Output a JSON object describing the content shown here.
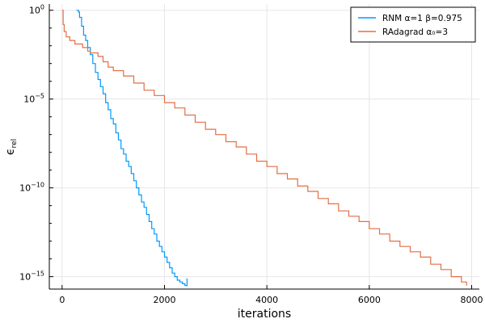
{
  "chart_data": {
    "type": "line",
    "title": "",
    "xlabel": "iterations",
    "ylabel": "ϵ_rel",
    "ylabel_main": "ϵ",
    "ylabel_sub": "rel",
    "x_scale": "linear",
    "y_scale": "log",
    "xlim": [
      -250,
      8150
    ],
    "ylim_log10": [
      -15.7,
      0.35
    ],
    "x_ticks": [
      {
        "value": 0,
        "label": "0"
      },
      {
        "value": 2000,
        "label": "2000"
      },
      {
        "value": 4000,
        "label": "4000"
      },
      {
        "value": 6000,
        "label": "6000"
      },
      {
        "value": 8000,
        "label": "8000"
      }
    ],
    "y_ticks": [
      {
        "exp": 0,
        "base": "10",
        "sup": "0"
      },
      {
        "exp": -5,
        "base": "10",
        "sup": "−5"
      },
      {
        "exp": -10,
        "base": "10",
        "sup": "−10"
      },
      {
        "exp": -15,
        "base": "10",
        "sup": "−15"
      }
    ],
    "grid": true,
    "legend_position": "top-right",
    "series": [
      {
        "name": "RNM α=1 β=0.975",
        "color": "#009AFA",
        "x": [
          280,
          320,
          340,
          380,
          420,
          460,
          500,
          550,
          600,
          650,
          700,
          750,
          800,
          850,
          900,
          950,
          1000,
          1050,
          1100,
          1150,
          1200,
          1250,
          1300,
          1350,
          1400,
          1450,
          1500,
          1550,
          1600,
          1650,
          1700,
          1750,
          1800,
          1850,
          1900,
          1950,
          2000,
          2050,
          2100,
          2150,
          2200,
          2250,
          2300,
          2350,
          2400,
          2440
        ],
        "log10_y": [
          0.0,
          -0.1,
          -0.4,
          -0.9,
          -1.4,
          -1.7,
          -2.1,
          -2.5,
          -3.0,
          -3.5,
          -3.9,
          -4.3,
          -4.7,
          -5.2,
          -5.6,
          -6.1,
          -6.4,
          -6.9,
          -7.3,
          -7.8,
          -8.1,
          -8.5,
          -8.8,
          -9.2,
          -9.6,
          -10.0,
          -10.4,
          -10.8,
          -11.1,
          -11.5,
          -11.9,
          -12.3,
          -12.6,
          -13.0,
          -13.3,
          -13.6,
          -13.9,
          -14.2,
          -14.5,
          -14.8,
          -15.0,
          -15.2,
          -15.3,
          -15.4,
          -15.5,
          -15.1
        ]
      },
      {
        "name": "RAdagrad α₀=3",
        "color": "#E26F46",
        "x": [
          0,
          20,
          40,
          80,
          150,
          250,
          400,
          500,
          550,
          700,
          800,
          900,
          1000,
          1200,
          1400,
          1600,
          1800,
          2000,
          2200,
          2400,
          2600,
          2800,
          3000,
          3200,
          3400,
          3600,
          3800,
          4000,
          4200,
          4400,
          4600,
          4800,
          5000,
          5200,
          5400,
          5600,
          5800,
          6000,
          6200,
          6400,
          6600,
          6800,
          7000,
          7200,
          7400,
          7600,
          7800,
          7900
        ],
        "log10_y": [
          0.0,
          -0.8,
          -1.2,
          -1.5,
          -1.7,
          -1.9,
          -2.1,
          -2.3,
          -2.4,
          -2.6,
          -2.9,
          -3.2,
          -3.4,
          -3.7,
          -4.1,
          -4.5,
          -4.8,
          -5.2,
          -5.5,
          -5.9,
          -6.3,
          -6.7,
          -7.0,
          -7.4,
          -7.7,
          -8.1,
          -8.5,
          -8.8,
          -9.2,
          -9.5,
          -9.9,
          -10.2,
          -10.6,
          -10.9,
          -11.3,
          -11.6,
          -11.9,
          -12.3,
          -12.6,
          -13.0,
          -13.3,
          -13.6,
          -13.9,
          -14.3,
          -14.6,
          -15.0,
          -15.3,
          -15.5
        ]
      }
    ]
  }
}
